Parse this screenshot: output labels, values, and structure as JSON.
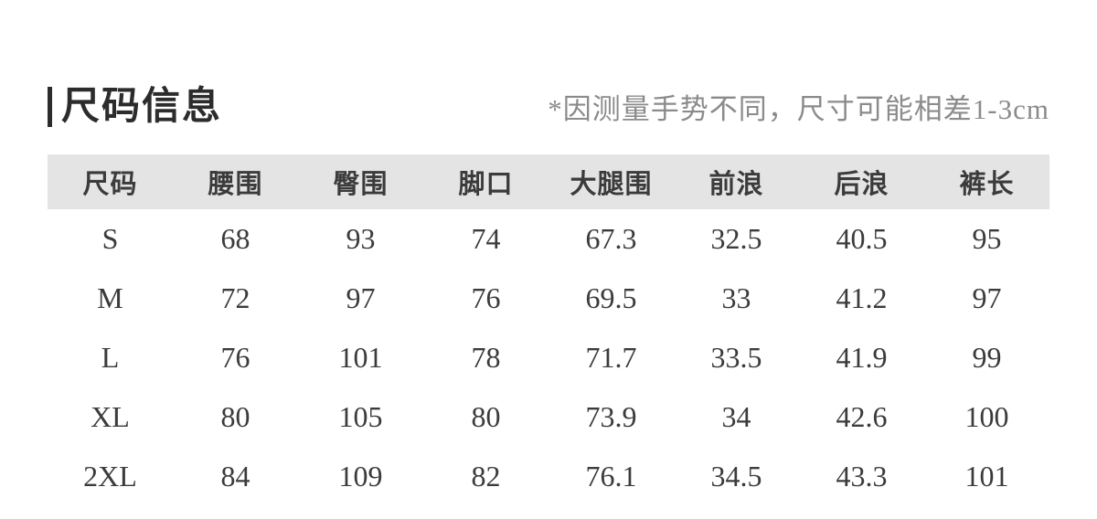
{
  "page": {
    "title": "尺码信息",
    "note": "*因测量手势不同，尺寸可能相差1-3cm"
  },
  "table": {
    "headers": [
      "尺码",
      "腰围",
      "臀围",
      "脚口",
      "大腿围",
      "前浪",
      "后浪",
      "裤长"
    ],
    "rows": [
      [
        "S",
        "68",
        "93",
        "74",
        "67.3",
        "32.5",
        "40.5",
        "95"
      ],
      [
        "M",
        "72",
        "97",
        "76",
        "69.5",
        "33",
        "41.2",
        "97"
      ],
      [
        "L",
        "76",
        "101",
        "78",
        "71.7",
        "33.5",
        "41.9",
        "99"
      ],
      [
        "XL",
        "80",
        "105",
        "80",
        "73.9",
        "34",
        "42.6",
        "100"
      ],
      [
        "2XL",
        "84",
        "109",
        "82",
        "76.1",
        "34.5",
        "43.3",
        "101"
      ]
    ]
  },
  "colors": {
    "header_bg": "#e4e4e4",
    "title": "#2c2c2c",
    "text": "#3b3b3b",
    "note": "#8b8b8b",
    "background": "#ffffff"
  }
}
